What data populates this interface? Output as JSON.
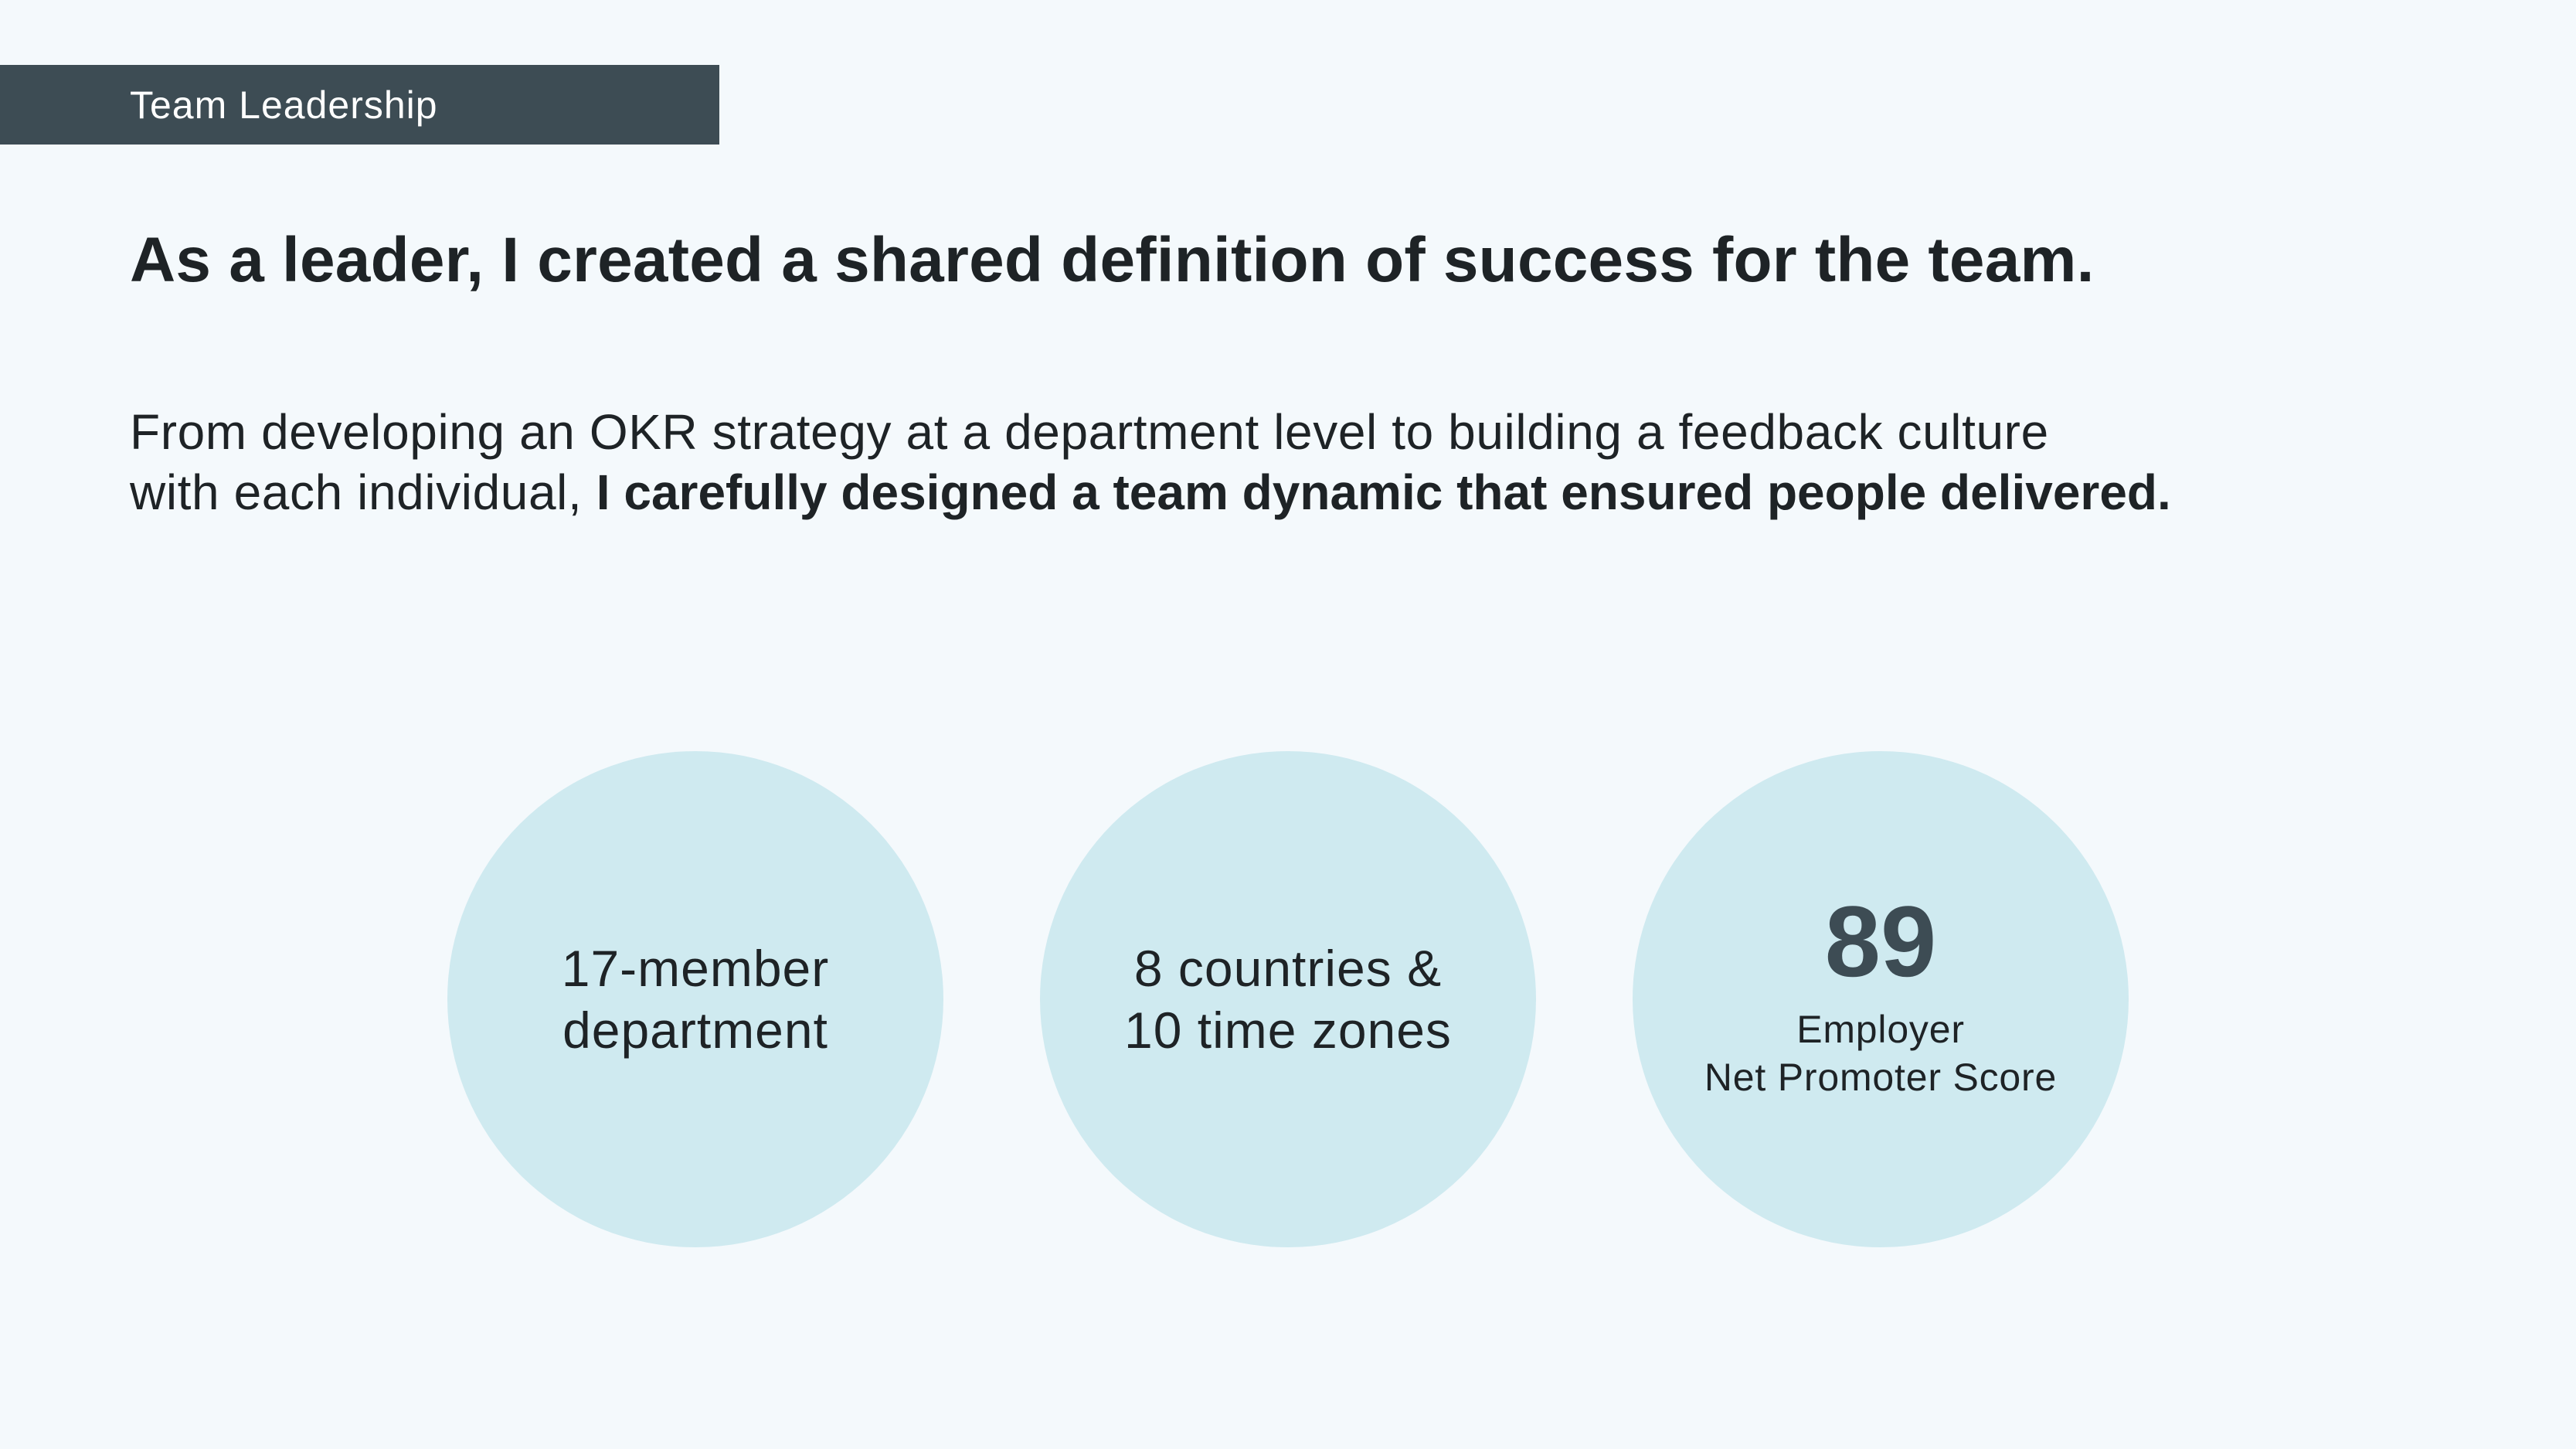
{
  "tag": {
    "label": "Team Leadership"
  },
  "headline": "As a leader, I created a shared definition of success for the team.",
  "body": {
    "intro_line1": "From developing an OKR strategy at a department level to building a feedback culture",
    "intro_line2": "with each individual,",
    "emphasis": "I carefully designed a team dynamic that ensured people delivered."
  },
  "stats": [
    {
      "line1": "17-member",
      "line2": "department"
    },
    {
      "line1": "8 countries &",
      "line2": "10 time zones"
    },
    {
      "number": "89",
      "caption_line1": "Employer",
      "caption_line2": "Net Promoter Score"
    }
  ],
  "colors": {
    "background": "#f4f9fc",
    "tag_bar": "#3d4c54",
    "circle": "#cfeaf0",
    "text": "#1e2326",
    "number": "#3d4c54"
  }
}
